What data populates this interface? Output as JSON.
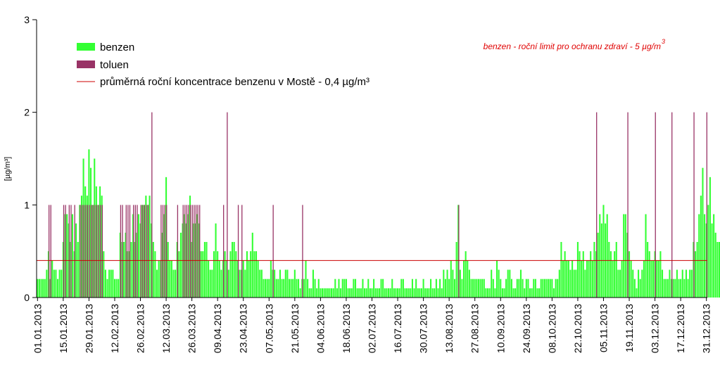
{
  "chart_data": {
    "type": "bar",
    "ylabel": "[µg/m³]",
    "ylim": [
      0,
      3
    ],
    "yticks": [
      "0",
      "1",
      "2",
      "3"
    ],
    "x_start": "01.01.2013",
    "x_end": "31.12.2013",
    "x_tick_labels": [
      "01.01.2013",
      "15.01.2013",
      "29.01.2013",
      "12.02.2013",
      "26.02.2013",
      "12.03.2013",
      "26.03.2013",
      "09.04.2013",
      "23.04.2013",
      "07.05.2013",
      "21.05.2013",
      "04.06.2013",
      "18.06.2013",
      "02.07.2013",
      "16.07.2013",
      "30.07.2013",
      "13.08.2013",
      "27.08.2013",
      "10.09.2013",
      "24.09.2013",
      "08.10.2013",
      "22.10.2013",
      "05.11.2013",
      "19.11.2013",
      "03.12.2013",
      "17.12.2013",
      "31.12.2013"
    ],
    "series": [
      {
        "name": "benzen",
        "color": "#33ff33",
        "note": "daily values for day 1..365 (µg/m³), estimated",
        "values": [
          0.2,
          0.2,
          0.2,
          0.2,
          0.2,
          0.3,
          0.5,
          0.2,
          0.4,
          0.3,
          0.3,
          0.2,
          0.3,
          0.3,
          0.6,
          0.9,
          0.9,
          0.8,
          0.6,
          0.9,
          0.5,
          0.8,
          0.6,
          1.0,
          1.1,
          1.5,
          1.2,
          1.1,
          1.6,
          1.4,
          1.0,
          1.5,
          1.2,
          1.0,
          1.2,
          1.1,
          0.5,
          0.3,
          0.2,
          0.3,
          0.3,
          0.3,
          0.2,
          0.2,
          0.2,
          0.7,
          0.6,
          0.6,
          0.7,
          0.5,
          0.5,
          0.6,
          0.9,
          0.6,
          0.7,
          0.9,
          0.8,
          1.0,
          1.0,
          1.1,
          1.0,
          1.1,
          0.8,
          0.6,
          0.5,
          0.3,
          0.4,
          0.4,
          0.7,
          0.9,
          1.3,
          0.6,
          0.4,
          0.4,
          0.3,
          0.3,
          0.6,
          0.5,
          0.7,
          0.8,
          0.9,
          0.8,
          0.9,
          1.1,
          0.6,
          0.8,
          0.8,
          0.9,
          0.8,
          0.5,
          0.5,
          0.6,
          0.6,
          0.4,
          0.3,
          0.3,
          0.5,
          0.8,
          0.5,
          0.4,
          0.3,
          0.4,
          0.5,
          0.4,
          0.3,
          0.5,
          0.6,
          0.6,
          0.5,
          0.4,
          0.3,
          0.3,
          0.4,
          0.3,
          0.5,
          0.4,
          0.5,
          0.7,
          0.5,
          0.5,
          0.4,
          0.3,
          0.3,
          0.2,
          0.2,
          0.2,
          0.2,
          0.4,
          0.3,
          0.3,
          0.2,
          0.2,
          0.3,
          0.2,
          0.2,
          0.3,
          0.3,
          0.2,
          0.2,
          0.2,
          0.3,
          0.2,
          0.2,
          0.1,
          0.2,
          0.2,
          0.4,
          0.2,
          0.1,
          0.1,
          0.3,
          0.2,
          0.1,
          0.2,
          0.1,
          0.1,
          0.1,
          0.1,
          0.1,
          0.1,
          0.1,
          0.1,
          0.2,
          0.1,
          0.2,
          0.1,
          0.2,
          0.2,
          0.2,
          0.1,
          0.1,
          0.1,
          0.2,
          0.2,
          0.1,
          0.1,
          0.1,
          0.2,
          0.1,
          0.1,
          0.2,
          0.1,
          0.1,
          0.2,
          0.1,
          0.1,
          0.1,
          0.2,
          0.2,
          0.1,
          0.1,
          0.1,
          0.1,
          0.2,
          0.1,
          0.1,
          0.1,
          0.1,
          0.2,
          0.2,
          0.1,
          0.1,
          0.1,
          0.1,
          0.2,
          0.1,
          0.2,
          0.1,
          0.1,
          0.1,
          0.2,
          0.1,
          0.1,
          0.1,
          0.2,
          0.1,
          0.1,
          0.2,
          0.1,
          0.2,
          0.1,
          0.3,
          0.2,
          0.3,
          0.2,
          0.4,
          0.3,
          0.2,
          0.6,
          1.0,
          0.3,
          0.2,
          0.4,
          0.5,
          0.4,
          0.3,
          0.2,
          0.2,
          0.2,
          0.2,
          0.2,
          0.2,
          0.2,
          0.2,
          0.1,
          0.1,
          0.1,
          0.3,
          0.2,
          0.1,
          0.4,
          0.3,
          0.2,
          0.1,
          0.1,
          0.2,
          0.3,
          0.3,
          0.2,
          0.1,
          0.1,
          0.2,
          0.2,
          0.3,
          0.2,
          0.1,
          0.2,
          0.2,
          0.1,
          0.1,
          0.2,
          0.2,
          0.1,
          0.1,
          0.2,
          0.2,
          0.2,
          0.2,
          0.2,
          0.2,
          0.2,
          0.1,
          0.2,
          0.2,
          0.3,
          0.6,
          0.4,
          0.5,
          0.4,
          0.4,
          0.3,
          0.4,
          0.3,
          0.3,
          0.6,
          0.5,
          0.4,
          0.5,
          0.3,
          0.4,
          0.4,
          0.5,
          0.4,
          0.6,
          0.5,
          0.7,
          0.9,
          0.8,
          1.0,
          0.8,
          0.9,
          0.6,
          0.5,
          0.4,
          0.5,
          0.6,
          0.3,
          0.3,
          0.4,
          0.9,
          0.9,
          0.7,
          0.5,
          0.4,
          0.3,
          0.2,
          0.1,
          0.3,
          0.2,
          0.3,
          0.4,
          0.9,
          0.6,
          0.5,
          0.4,
          0.4,
          0.5,
          0.4,
          0.4,
          0.5,
          0.3,
          0.2,
          0.2,
          0.2,
          0.3,
          0.2,
          0.2,
          0.2,
          0.3,
          0.2,
          0.2,
          0.3,
          0.2,
          0.3,
          0.2,
          0.3,
          0.3,
          0.6,
          0.5,
          0.6,
          0.9,
          1.1,
          1.4,
          0.9,
          0.8,
          1.0,
          1.3,
          0.8,
          0.9,
          0.7,
          0.6,
          0.6,
          0.7,
          0.5,
          0.4,
          0.7
        ]
      },
      {
        "name": "toluen",
        "color": "#993366",
        "note": "daily values for day 1..365 (µg/m³), 0 = no bar",
        "values": [
          0,
          0,
          0,
          0,
          0,
          0,
          1,
          1,
          0,
          0,
          0,
          0,
          0,
          0,
          1,
          1,
          0,
          1,
          1,
          0,
          1,
          0,
          0,
          1,
          1,
          1,
          1,
          1,
          1,
          1,
          1,
          1,
          1,
          1,
          1,
          1,
          0,
          0,
          0,
          0,
          0,
          0,
          0,
          0,
          0,
          1,
          1,
          0,
          1,
          1,
          1,
          0,
          1,
          1,
          1,
          0,
          1,
          1,
          1,
          1,
          1,
          0,
          0,
          0,
          0,
          0,
          0,
          1,
          1,
          1,
          1,
          0,
          0,
          0,
          0,
          0,
          1,
          0,
          0,
          1,
          1,
          1,
          1,
          1,
          1,
          1,
          1,
          1,
          1,
          0,
          0,
          0,
          0,
          0,
          0,
          0,
          0,
          0,
          0,
          0,
          0,
          1,
          0,
          0,
          0,
          0,
          0,
          0,
          0,
          1,
          0,
          1,
          0,
          0,
          0,
          0,
          0,
          0,
          0,
          0,
          0,
          0,
          0,
          0,
          0,
          0,
          0,
          0,
          1,
          0,
          0,
          0,
          0,
          0,
          0,
          0,
          0,
          0,
          0,
          0,
          0,
          0,
          0,
          0,
          1,
          0,
          0,
          0,
          0,
          0,
          0,
          0,
          0,
          0,
          0,
          0,
          0,
          0,
          0,
          0,
          0,
          0,
          0,
          0,
          0,
          0,
          0,
          0,
          0,
          0,
          0,
          0,
          0,
          0,
          0,
          0,
          0,
          0,
          0,
          0,
          0,
          0,
          0,
          0,
          0,
          0,
          0,
          0,
          0,
          0,
          0,
          0,
          0,
          0,
          0,
          0,
          0,
          0,
          0,
          0,
          0,
          0,
          0,
          0,
          0,
          0,
          0,
          0,
          0,
          0,
          0,
          0,
          0,
          0,
          0,
          0,
          0,
          0,
          0,
          0,
          0,
          0,
          0,
          0,
          0,
          0,
          0,
          0,
          0,
          1,
          0,
          0,
          0,
          0,
          0,
          0,
          0,
          0,
          0,
          0,
          0,
          0,
          0,
          0,
          0,
          0,
          0,
          0,
          0,
          0,
          0,
          0,
          0,
          0,
          0,
          0,
          0,
          0,
          0,
          0,
          0,
          0,
          0,
          0,
          0,
          0,
          0,
          0,
          0,
          0,
          0,
          0,
          0,
          0,
          0,
          0,
          0,
          0,
          0,
          0,
          0,
          0,
          0,
          0,
          0,
          0,
          0,
          0,
          0,
          0,
          0,
          0,
          0,
          0,
          0,
          0,
          0,
          0,
          0,
          0,
          0,
          0,
          0,
          0,
          0,
          0,
          0,
          0,
          0,
          0,
          0,
          0,
          0,
          0,
          0,
          0,
          0,
          0,
          0,
          0,
          0,
          0,
          0,
          0,
          0,
          0,
          0,
          0,
          0,
          0,
          0,
          0,
          0,
          0,
          0,
          0,
          0,
          0,
          0,
          0,
          0,
          0,
          0,
          0,
          0,
          0,
          0,
          0,
          0,
          0,
          0,
          0,
          0,
          0,
          0,
          0,
          0,
          0,
          0,
          0,
          0,
          0,
          0,
          0,
          0,
          0,
          0,
          0,
          0,
          0,
          0,
          0,
          0,
          0,
          0,
          0,
          0,
          0,
          0,
          0,
          0,
          0,
          0,
          0,
          0,
          0,
          0,
          0
        ]
      }
    ],
    "reference_line": {
      "name": "průměrná roční koncentrace benzenu v Mostě  - 0,4 µg/m³",
      "value": 0.4,
      "color": "#cc0000"
    },
    "annotation": {
      "text": "benzen - roční limit pro ochranu zdraví - 5 µg/m",
      "superscript": "3",
      "color": "#e00000"
    },
    "legend_placement": "top-left",
    "grid": false
  }
}
